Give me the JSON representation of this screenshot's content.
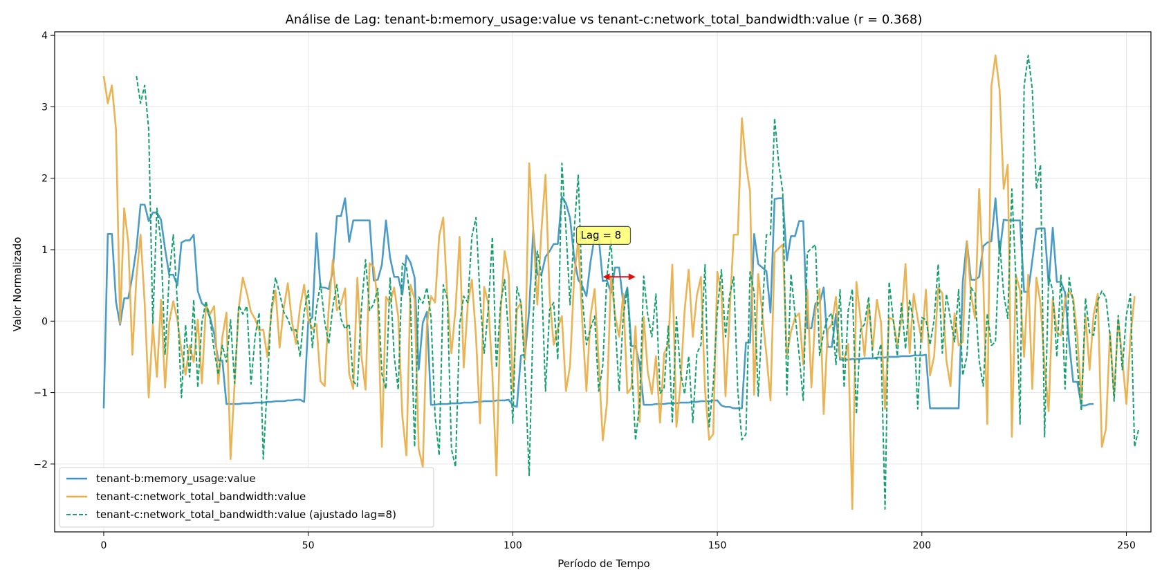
{
  "chart_data": {
    "type": "line",
    "title": "Análise de Lag: tenant-b:memory_usage:value vs tenant-c:network_total_bandwidth:value (r = 0.368)",
    "xlabel": "Período de Tempo",
    "ylabel": "Valor Normalizado",
    "xlim": [
      -12,
      256
    ],
    "ylim": [
      -2.95,
      4.05
    ],
    "xticks": [
      0,
      50,
      100,
      150,
      200,
      250
    ],
    "yticks": [
      -2,
      -1,
      0,
      1,
      2,
      3,
      4
    ],
    "grid": true,
    "legend_position": "lower-left",
    "annotation": {
      "text": "Lag = 8",
      "x": 122,
      "y": 1.2,
      "arrow_from": 122,
      "arrow_to": 130,
      "arrow_y": 0.62
    },
    "series": [
      {
        "name": "tenant-b:memory_usage:value",
        "color": "#3b93c2",
        "style": "solid",
        "x_start": 0,
        "values": [
          -1.22,
          1.22,
          1.22,
          0.27,
          -0.05,
          0.32,
          0.32,
          0.63,
          1.02,
          1.63,
          1.63,
          1.4,
          1.52,
          1.52,
          1.42,
          1.01,
          0.65,
          0.65,
          0.5,
          1.1,
          1.13,
          1.13,
          1.21,
          0.42,
          0.25,
          0.2,
          0.05,
          -0.18,
          -0.55,
          -0.55,
          -1.16,
          -1.16,
          -1.16,
          -1.16,
          -1.15,
          -1.15,
          -1.15,
          -1.14,
          -1.14,
          -1.14,
          -1.13,
          -1.13,
          -1.12,
          -1.12,
          -1.12,
          -1.11,
          -1.11,
          -1.1,
          -1.1,
          -1.13,
          0.0,
          0.05,
          1.23,
          0.47,
          0.47,
          0.45,
          0.7,
          1.47,
          1.47,
          1.72,
          1.11,
          1.41,
          1.41,
          1.41,
          1.41,
          1.41,
          0.57,
          0.58,
          0.79,
          1.41,
          0.89,
          0.62,
          0.62,
          0.37,
          0.92,
          0.82,
          0.61,
          -0.68,
          -0.02,
          0.13,
          -1.17,
          -1.17,
          -1.16,
          -1.16,
          -1.16,
          -1.15,
          -1.15,
          -1.15,
          -1.14,
          -1.14,
          -1.14,
          -1.13,
          -1.13,
          -1.12,
          -1.12,
          -1.12,
          -1.11,
          -1.11,
          -1.11,
          -1.1,
          -1.18,
          -1.2,
          -0.48,
          -0.47,
          0.15,
          1.27,
          0.65,
          0.65,
          0.9,
          0.98,
          1.08,
          1.08,
          1.74,
          1.65,
          1.44,
          0.89,
          0.58,
          0.49,
          0.35,
          0.83,
          1.18,
          1.18,
          0.56,
          0.57,
          0.4,
          0.75,
          0.75,
          0.25,
          0.47,
          -0.35,
          -0.35,
          -0.6,
          -1.17,
          -1.17,
          -1.17,
          -1.16,
          -1.16,
          -1.16,
          -1.15,
          -1.15,
          -1.15,
          -1.14,
          -1.14,
          -1.14,
          -1.13,
          -1.13,
          -1.12,
          -1.12,
          -1.12,
          -1.11,
          -1.11,
          -1.18,
          -1.2,
          -1.2,
          -1.22,
          -1.22,
          -1.22,
          -0.3,
          -0.3,
          1.22,
          0.8,
          0.75,
          0.7,
          0.12,
          1.71,
          1.72,
          1.72,
          0.85,
          1.19,
          1.19,
          1.4,
          1.4,
          -0.1,
          -0.1,
          0.25,
          0.25,
          0.47,
          -0.36,
          -0.36,
          0.1,
          -0.54,
          -0.54,
          -0.54,
          -0.53,
          -0.53,
          -0.53,
          -0.52,
          -0.52,
          -0.52,
          -0.51,
          -0.51,
          -0.51,
          -0.5,
          -0.5,
          -0.5,
          -0.49,
          -0.49,
          -0.49,
          -0.48,
          -0.48,
          -0.48,
          -0.47,
          -1.22,
          -1.22,
          -1.22,
          -1.22,
          -1.22,
          -1.22,
          -1.22,
          -1.22,
          0.55,
          1.12,
          0.58,
          0.58,
          0.62,
          1.05,
          1.1,
          1.12,
          1.72,
          0.95,
          1.42,
          1.41,
          1.41,
          1.41,
          1.41,
          0.41,
          0.41,
          0.85,
          1.29,
          1.3,
          1.3,
          0.5,
          1.31,
          0.55,
          0.55,
          0.4,
          -0.3,
          -0.85,
          -0.85,
          -1.18,
          -1.18,
          -1.16,
          -1.16
        ]
      },
      {
        "name": "tenant-c:network_total_bandwidth:value",
        "color": "#e8ac45",
        "style": "solid",
        "x_start": 0,
        "values": [
          3.43,
          3.05,
          3.3,
          2.68,
          -0.03,
          1.58,
          1.1,
          -0.47,
          0.62,
          1.21,
          0.26,
          -1.07,
          -0.05,
          -0.78,
          0.3,
          -0.93,
          -0.02,
          0.28,
          0.02,
          -0.41,
          -0.75,
          -0.34,
          -0.57,
          0.02,
          -0.87,
          0.22,
          0.1,
          0.21,
          -0.88,
          -0.22,
          0.12,
          -1.93,
          -0.87,
          0.18,
          0.61,
          0.39,
          0.13,
          0.03,
          -0.13,
          -0.12,
          -0.5,
          0.13,
          0.43,
          -0.37,
          0.18,
          0.53,
          0.0,
          -0.32,
          0.2,
          0.51,
          0.03,
          -0.11,
          -0.04,
          -0.84,
          -0.91,
          0.18,
          0.86,
          0.15,
          0.24,
          0.46,
          -0.74,
          -0.95,
          0.61,
          -0.49,
          -0.96,
          0.81,
          0.76,
          0.26,
          -1.76,
          0.34,
          0.25,
          0.47,
          0.06,
          -1.33,
          -1.88,
          0.51,
          0.31,
          -1.79,
          -2.04,
          -0.05,
          0.35,
          0.26,
          1.19,
          1.45,
          0.33,
          -0.45,
          0.17,
          1.18,
          -0.65,
          0.24,
          0.58,
          -0.21,
          -1.43,
          0.48,
          0.25,
          -0.73,
          -2.16,
          0.1,
          0.98,
          0.65,
          -0.98,
          0.16,
          0.26,
          -0.54,
          2.21,
          1.28,
          0.23,
          1.27,
          2.05,
          0.34,
          -0.33,
          -0.1,
          0.07,
          -0.98,
          -0.62,
          0.62,
          1.14,
          -0.02,
          -0.98,
          0.07,
          0.45,
          -0.58,
          -1.67,
          -1.16,
          0.63,
          0.08,
          -0.22,
          0.38,
          -1.01,
          -0.93,
          -0.07,
          -1.41,
          0.06,
          -0.71,
          -1.02,
          -0.49,
          -1.42,
          -0.45,
          -0.33,
          0.79,
          -1.48,
          -0.88,
          0.15,
          0.72,
          -0.22,
          0.36,
          0.62,
          -0.97,
          -1.66,
          -1.58,
          0.69,
          0.4,
          -1.05,
          0.09,
          1.21,
          1.21,
          2.84,
          2.21,
          1.81,
          -1.03,
          0.66,
          0.1,
          -0.47,
          -1.11,
          0.96,
          1.02,
          1.07,
          -0.48,
          -0.15,
          0.05,
          0.11,
          -0.61,
          0.44,
          -0.93,
          0.15,
          0.45,
          -1.3,
          -0.12,
          -0.04,
          0.34,
          -0.5,
          -0.53,
          -0.32,
          -2.63,
          0.55,
          0.03,
          -0.49,
          0.25,
          -0.39,
          0.3,
          -0.01,
          -1.23,
          0.05,
          0.02,
          -0.33,
          0.02,
          0.8,
          -0.45,
          0.38,
          0.03,
          -0.29,
          0.44,
          -0.76,
          -0.49,
          0.47,
          0.39,
          -0.55,
          -0.91,
          0.11,
          -0.34,
          -0.29,
          1.12,
          0.38,
          0.04,
          1.85,
          0.58,
          -1.44,
          3.29,
          3.72,
          3.24,
          1.85,
          2.19,
          -1.62,
          0.64,
          0.43,
          -0.5,
          0.65,
          -0.95,
          0.61,
          0.25,
          -0.63,
          -1.26,
          0.32,
          -0.16,
          -0.2,
          0.29,
          0.42,
          0.33,
          -0.21,
          -1.12,
          0.08,
          -0.68,
          0.09,
          0.38,
          -1.76,
          -1.51,
          -0.15,
          -1.05,
          0.03,
          -0.52,
          -1.16,
          -0.22,
          0.35
        ]
      },
      {
        "name": "tenant-c:network_total_bandwidth:value (ajustado lag=8)",
        "color": "#14a06c",
        "style": "dashed",
        "x_start": 8,
        "values": [
          3.43,
          3.05,
          3.3,
          2.68,
          -0.03,
          1.58,
          1.1,
          -0.47,
          0.62,
          1.21,
          0.26,
          -1.07,
          -0.05,
          -0.78,
          0.3,
          -0.93,
          -0.02,
          0.28,
          0.02,
          -0.41,
          -0.75,
          -0.34,
          -0.57,
          0.02,
          -0.87,
          0.22,
          0.1,
          0.21,
          -0.88,
          -0.22,
          0.12,
          -1.93,
          -0.87,
          0.18,
          0.61,
          0.39,
          0.13,
          0.03,
          -0.13,
          -0.12,
          -0.5,
          0.13,
          0.43,
          -0.37,
          0.18,
          0.53,
          0.0,
          -0.32,
          0.2,
          0.51,
          0.03,
          -0.11,
          -0.04,
          -0.84,
          -0.91,
          0.18,
          0.86,
          0.15,
          0.24,
          0.46,
          -0.74,
          -0.95,
          0.61,
          -0.49,
          -0.96,
          0.81,
          0.76,
          0.26,
          -1.76,
          0.34,
          0.25,
          0.47,
          0.06,
          -1.33,
          -1.88,
          0.51,
          0.31,
          -1.79,
          -2.04,
          -0.05,
          0.35,
          0.26,
          1.19,
          1.45,
          0.33,
          -0.45,
          0.17,
          1.18,
          -0.65,
          0.24,
          0.58,
          -0.21,
          -1.43,
          0.48,
          0.25,
          -0.73,
          -2.16,
          0.1,
          0.98,
          0.65,
          -0.98,
          0.16,
          0.26,
          -0.54,
          2.21,
          1.28,
          0.23,
          1.27,
          2.05,
          0.34,
          -0.33,
          -0.1,
          0.07,
          -0.98,
          -0.62,
          0.62,
          1.14,
          -0.02,
          -0.98,
          0.07,
          0.45,
          -0.58,
          -1.67,
          -1.16,
          0.63,
          0.08,
          -0.22,
          0.38,
          -1.01,
          -0.93,
          -0.07,
          -1.41,
          0.06,
          -0.71,
          -1.02,
          -0.49,
          -1.42,
          -0.45,
          -0.33,
          0.79,
          -1.48,
          -0.88,
          0.15,
          0.72,
          -0.22,
          0.36,
          0.62,
          -0.97,
          -1.66,
          -1.58,
          0.69,
          0.4,
          -1.05,
          0.09,
          1.21,
          1.21,
          2.84,
          2.21,
          1.81,
          -1.03,
          0.66,
          0.1,
          -0.47,
          -1.11,
          0.96,
          1.02,
          1.07,
          -0.48,
          -0.15,
          0.05,
          0.11,
          -0.61,
          0.44,
          -0.93,
          0.15,
          0.45,
          -1.3,
          -0.12,
          -0.04,
          0.34,
          -0.5,
          -0.53,
          -0.32,
          -2.63,
          0.55,
          0.03,
          -0.49,
          0.25,
          -0.39,
          0.3,
          -0.01,
          -1.23,
          0.05,
          0.02,
          -0.33,
          0.02,
          0.8,
          -0.45,
          0.38,
          0.03,
          -0.29,
          0.44,
          -0.76,
          -0.49,
          0.47,
          0.39,
          -0.55,
          -0.91,
          0.11,
          -0.34,
          -0.29,
          1.12,
          0.38,
          0.04,
          1.85,
          0.58,
          -1.44,
          3.29,
          3.72,
          3.24,
          1.85,
          2.19,
          -1.62,
          0.64,
          0.43,
          -0.5,
          0.65,
          -0.95,
          0.61,
          0.25,
          -0.63,
          -1.26,
          0.32,
          -0.16,
          -0.2,
          0.29,
          0.42,
          0.33,
          -0.21,
          -1.12,
          0.08,
          -0.68,
          0.09,
          0.38,
          -1.76,
          -1.51
        ]
      }
    ]
  }
}
